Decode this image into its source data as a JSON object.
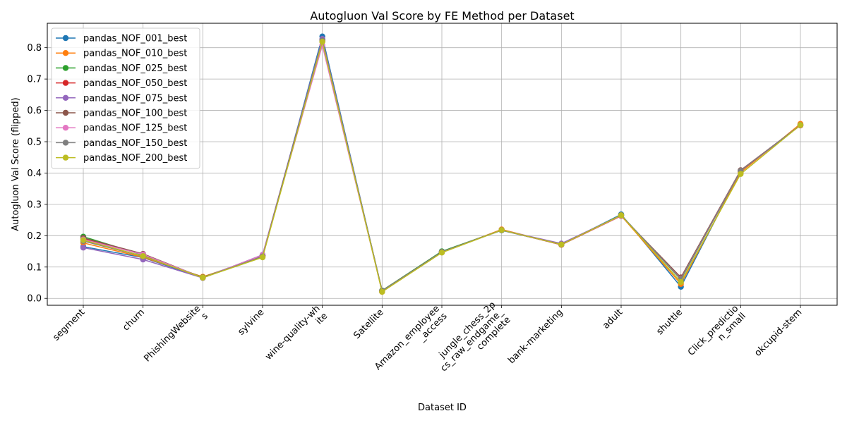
{
  "chart_data": {
    "type": "line",
    "title": "Autogluon Val Score by FE Method per Dataset",
    "xlabel": "Dataset ID",
    "ylabel": "Autogluon Val Score (flipped)",
    "ylim": [
      -0.022,
      0.878
    ],
    "yticks": [
      "0.0",
      "0.1",
      "0.2",
      "0.3",
      "0.4",
      "0.5",
      "0.6",
      "0.7",
      "0.8"
    ],
    "grid": true,
    "legend_position": "top-left",
    "categories": [
      [
        "segment"
      ],
      [
        "churn"
      ],
      [
        "PhishingWebsite",
        "s"
      ],
      [
        "sylvine"
      ],
      [
        "wine-quality-wh",
        "ite"
      ],
      [
        "Satellite"
      ],
      [
        "Amazon_employee",
        "_access"
      ],
      [
        "jungle_chess_2p",
        "cs_raw_endgame_",
        "complete"
      ],
      [
        "bank-marketing"
      ],
      [
        "adult"
      ],
      [
        "shuttle"
      ],
      [
        "Click_predictio",
        "n_small"
      ],
      [
        "okcupid-stem"
      ]
    ],
    "series": [
      {
        "name": "pandas_NOF_001_best",
        "color": "#1f77b4",
        "values": [
          0.165,
          0.13,
          0.066,
          0.133,
          0.836,
          0.022,
          0.15,
          0.217,
          0.172,
          0.268,
          0.037,
          0.407,
          0.553
        ]
      },
      {
        "name": "pandas_NOF_010_best",
        "color": "#ff7f0e",
        "values": [
          0.177,
          0.131,
          0.069,
          0.132,
          0.825,
          0.021,
          0.147,
          0.22,
          0.172,
          0.264,
          0.046,
          0.402,
          0.557
        ]
      },
      {
        "name": "pandas_NOF_025_best",
        "color": "#2ca02c",
        "values": [
          0.197,
          0.138,
          0.067,
          0.137,
          0.826,
          0.025,
          0.15,
          0.218,
          0.172,
          0.266,
          0.06,
          0.408,
          0.553
        ]
      },
      {
        "name": "pandas_NOF_050_best",
        "color": "#d62728",
        "values": [
          0.19,
          0.14,
          0.066,
          0.137,
          0.82,
          0.024,
          0.148,
          0.218,
          0.171,
          0.263,
          0.066,
          0.407,
          0.552
        ]
      },
      {
        "name": "pandas_NOF_075_best",
        "color": "#9467bd",
        "values": [
          0.162,
          0.124,
          0.065,
          0.139,
          0.828,
          0.024,
          0.147,
          0.218,
          0.175,
          0.265,
          0.063,
          0.408,
          0.553
        ]
      },
      {
        "name": "pandas_NOF_100_best",
        "color": "#8c564b",
        "values": [
          0.193,
          0.142,
          0.066,
          0.137,
          0.823,
          0.023,
          0.148,
          0.218,
          0.172,
          0.264,
          0.067,
          0.409,
          0.553
        ]
      },
      {
        "name": "pandas_NOF_125_best",
        "color": "#e377c2",
        "values": [
          0.188,
          0.14,
          0.066,
          0.138,
          0.808,
          0.023,
          0.148,
          0.218,
          0.172,
          0.264,
          0.062,
          0.407,
          0.553
        ]
      },
      {
        "name": "pandas_NOF_150_best",
        "color": "#7f7f7f",
        "values": [
          0.183,
          0.134,
          0.066,
          0.134,
          0.823,
          0.024,
          0.148,
          0.218,
          0.172,
          0.266,
          0.061,
          0.407,
          0.553
        ]
      },
      {
        "name": "pandas_NOF_200_best",
        "color": "#bcbd22",
        "values": [
          0.186,
          0.135,
          0.066,
          0.131,
          0.819,
          0.021,
          0.146,
          0.218,
          0.172,
          0.265,
          0.052,
          0.397,
          0.553
        ]
      }
    ]
  }
}
